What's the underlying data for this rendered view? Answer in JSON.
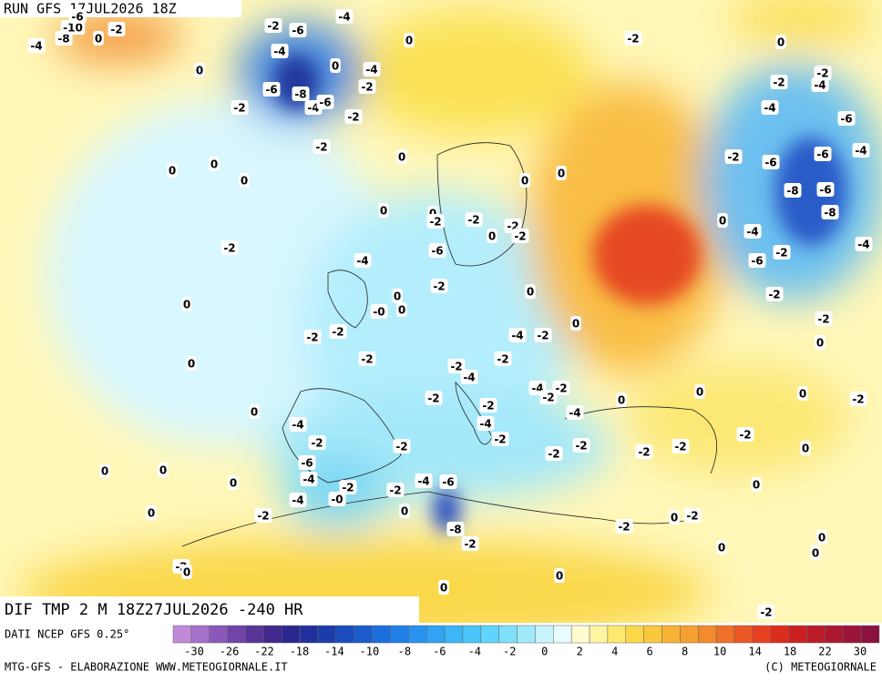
{
  "header": {
    "run": "RUN GFS 17JUL2026 18Z"
  },
  "map_labels": [
    "-4",
    "-2",
    "-6",
    "0",
    "-2",
    "0",
    "-4",
    "-8",
    "0",
    "-2",
    "-4",
    "0",
    "0",
    "-4",
    "-2",
    "-2",
    "-2",
    "-4",
    "-6",
    "-8",
    "-2",
    "-4",
    "-6",
    "-2",
    "-4",
    "-6",
    "-2",
    "0",
    "-2",
    "-6",
    "-6",
    "-4",
    "0",
    "0",
    "0",
    "0",
    "0",
    "-8",
    "-6",
    "-8",
    "0",
    "0",
    "-2",
    "-2",
    "-2",
    "-2",
    "0",
    "0",
    "-4",
    "-2",
    "-4",
    "-2",
    "-6",
    "-4",
    "-6",
    "-2",
    "-2",
    "0",
    "0",
    "0",
    "-0",
    "0",
    "-2",
    "-2",
    "-2",
    "-4",
    "-2",
    "0",
    "0",
    "-2",
    "-2",
    "0",
    "-2",
    "-4",
    "-4",
    "-2",
    "-2",
    "0",
    "0",
    "-2",
    "-2",
    "0",
    "-2",
    "-4",
    "0",
    "-4",
    "-4",
    "-2",
    "-2",
    "-2",
    "-2",
    "-2",
    "-2",
    "-2",
    "-2",
    "0",
    "0",
    "0",
    "-6",
    "-4",
    "0",
    "-4",
    "-6",
    "-2",
    "-2",
    "-0",
    "0",
    "-4",
    "0",
    "-2",
    "0",
    "0",
    "-2",
    "-2",
    "-8",
    "-2",
    "0",
    "0",
    "0",
    "-2",
    "0",
    "0",
    "0",
    "-2",
    "-10",
    "-6"
  ],
  "footer": {
    "title": "DIF TMP 2 M 18Z27JUL2026 -240 HR",
    "source": "DATI NCEP GFS 0.25°",
    "credit": "MTG-GFS - ELABORAZIONE WWW.METEOGIORNALE.IT",
    "copyright": "(C) METEOGIORNALE"
  },
  "colorbar": {
    "ticks": [
      -30,
      -26,
      -22,
      -18,
      -14,
      -10,
      -8,
      -6,
      -4,
      -2,
      0,
      2,
      4,
      6,
      8,
      10,
      14,
      18,
      22,
      30
    ]
  }
}
